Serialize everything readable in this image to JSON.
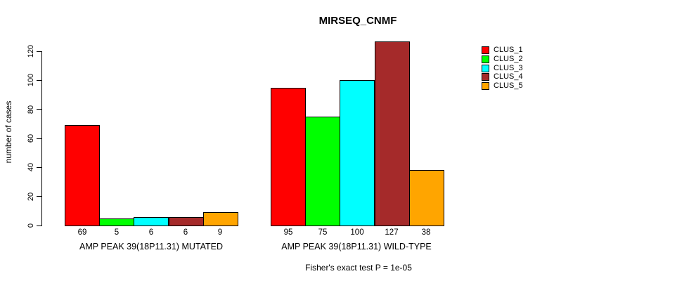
{
  "title": "MIRSEQ_CNMF",
  "subtitle": "Fisher's exact test P = 1e-05",
  "chart_data": {
    "type": "bar",
    "grouped": true,
    "title": "MIRSEQ_CNMF",
    "xlabel": "",
    "ylabel": "number of cases",
    "categories": [
      "AMP PEAK 39(18P11.31) MUTATED",
      "AMP PEAK 39(18P11.31) WILD-TYPE"
    ],
    "series": [
      {
        "name": "CLUS_1",
        "color": "#FF0000",
        "values": [
          69,
          95
        ]
      },
      {
        "name": "CLUS_2",
        "color": "#00FF00",
        "values": [
          5,
          75
        ]
      },
      {
        "name": "CLUS_3",
        "color": "#00FFFF",
        "values": [
          6,
          100
        ]
      },
      {
        "name": "CLUS_4",
        "color": "#A52A2A",
        "values": [
          6,
          127
        ]
      },
      {
        "name": "CLUS_5",
        "color": "#FFA500",
        "values": [
          9,
          38
        ]
      }
    ],
    "bar_value_labels": [
      [
        "69",
        "5",
        "6",
        "6",
        "9"
      ],
      [
        "95",
        "75",
        "100",
        "127",
        "38"
      ]
    ],
    "yticks": [
      0,
      20,
      40,
      60,
      80,
      100,
      120
    ],
    "ylim": [
      0,
      120
    ],
    "grid": false,
    "legend_position": "right",
    "legend_entries": [
      "CLUS_1",
      "CLUS_2",
      "CLUS_3",
      "CLUS_4",
      "CLUS_5"
    ],
    "annotation": "Fisher's exact test P = 1e-05",
    "bar_border_color": "#000000"
  }
}
